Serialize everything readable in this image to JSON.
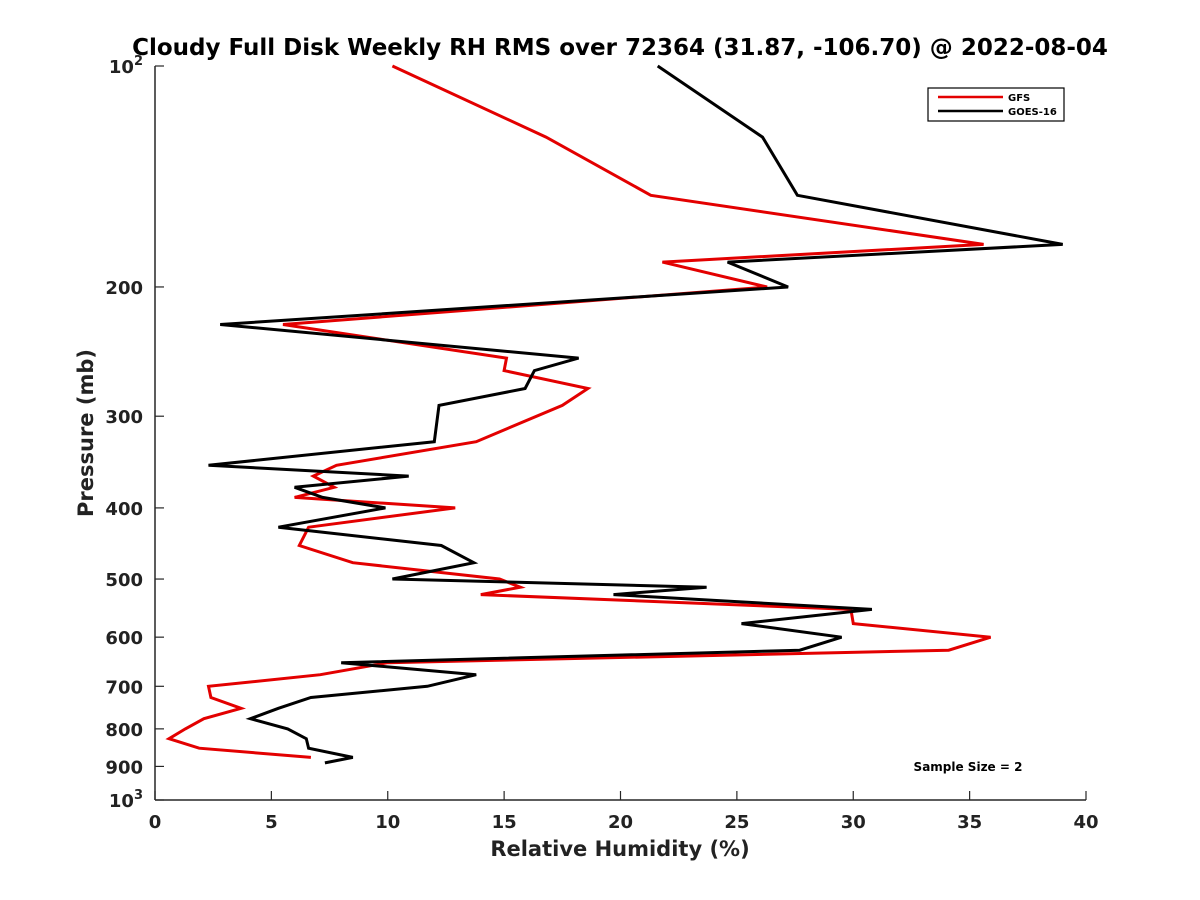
{
  "chart_data": {
    "type": "line",
    "title": "Cloudy Full Disk Weekly RH RMS over 72364 (31.87, -106.70) @ 2022-08-04",
    "xlabel": "Relative Humidity (%)",
    "ylabel": "Pressure (mb)",
    "xlim": [
      0,
      40
    ],
    "ylim": [
      100,
      1000
    ],
    "y_scale": "log",
    "y_reversed": true,
    "grid": false,
    "x_ticks": [
      "0",
      "5",
      "10",
      "15",
      "20",
      "25",
      "30",
      "35",
      "40"
    ],
    "y_ticks": [
      {
        "value": 100,
        "label": "10",
        "sup": "2"
      },
      {
        "value": 200,
        "label": "200",
        "sup": ""
      },
      {
        "value": 300,
        "label": "300",
        "sup": ""
      },
      {
        "value": 400,
        "label": "400",
        "sup": ""
      },
      {
        "value": 500,
        "label": "500",
        "sup": ""
      },
      {
        "value": 600,
        "label": "600",
        "sup": ""
      },
      {
        "value": 700,
        "label": "700",
        "sup": ""
      },
      {
        "value": 800,
        "label": "800",
        "sup": ""
      },
      {
        "value": 900,
        "label": "900",
        "sup": ""
      },
      {
        "value": 1000,
        "label": "10",
        "sup": "3"
      }
    ],
    "legend_position": "top-right",
    "annotation": "Sample Size = 2",
    "series": [
      {
        "name": "GFS",
        "color": "#e30000",
        "points": [
          [
            10.2,
            100
          ],
          [
            16.8,
            125
          ],
          [
            21.3,
            150
          ],
          [
            35.6,
            175
          ],
          [
            21.8,
            185
          ],
          [
            26.3,
            200
          ],
          [
            5.5,
            225
          ],
          [
            15.1,
            250
          ],
          [
            15.0,
            260
          ],
          [
            18.6,
            275
          ],
          [
            17.5,
            290
          ],
          [
            13.8,
            325
          ],
          [
            7.8,
            350
          ],
          [
            6.8,
            362
          ],
          [
            7.7,
            375
          ],
          [
            6.0,
            387
          ],
          [
            12.9,
            400
          ],
          [
            6.6,
            425
          ],
          [
            6.2,
            450
          ],
          [
            8.5,
            475
          ],
          [
            14.8,
            500
          ],
          [
            15.7,
            513
          ],
          [
            14.0,
            525
          ],
          [
            29.9,
            550
          ],
          [
            30.0,
            575
          ],
          [
            35.9,
            600
          ],
          [
            34.1,
            625
          ],
          [
            10.0,
            650
          ],
          [
            7.1,
            675
          ],
          [
            2.3,
            700
          ],
          [
            2.4,
            725
          ],
          [
            3.7,
            750
          ],
          [
            2.1,
            775
          ],
          [
            1.3,
            800
          ],
          [
            0.6,
            825
          ],
          [
            1.9,
            850
          ],
          [
            6.7,
            875
          ]
        ]
      },
      {
        "name": "GOES-16",
        "color": "#000000",
        "points": [
          [
            21.6,
            100
          ],
          [
            26.1,
            125
          ],
          [
            27.6,
            150
          ],
          [
            39.0,
            175
          ],
          [
            24.6,
            185
          ],
          [
            27.2,
            200
          ],
          [
            2.8,
            225
          ],
          [
            18.2,
            250
          ],
          [
            16.3,
            260
          ],
          [
            15.9,
            275
          ],
          [
            12.2,
            290
          ],
          [
            12.0,
            325
          ],
          [
            2.3,
            350
          ],
          [
            10.9,
            362
          ],
          [
            6.0,
            375
          ],
          [
            7.2,
            387
          ],
          [
            9.9,
            400
          ],
          [
            5.3,
            425
          ],
          [
            12.3,
            450
          ],
          [
            13.7,
            475
          ],
          [
            10.2,
            500
          ],
          [
            23.7,
            513
          ],
          [
            19.7,
            525
          ],
          [
            30.8,
            550
          ],
          [
            25.2,
            575
          ],
          [
            29.5,
            600
          ],
          [
            27.7,
            625
          ],
          [
            8.0,
            650
          ],
          [
            13.8,
            675
          ],
          [
            11.7,
            700
          ],
          [
            6.7,
            725
          ],
          [
            5.3,
            750
          ],
          [
            4.1,
            775
          ],
          [
            5.7,
            800
          ],
          [
            6.5,
            825
          ],
          [
            6.6,
            850
          ],
          [
            8.5,
            875
          ],
          [
            7.3,
            890
          ]
        ]
      }
    ]
  }
}
